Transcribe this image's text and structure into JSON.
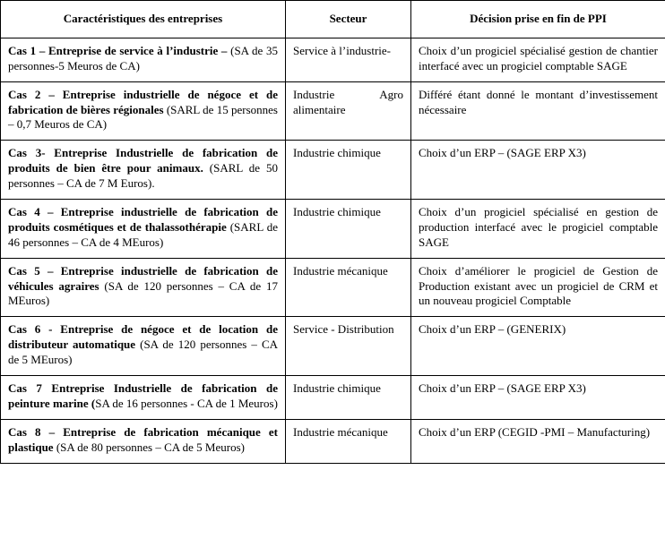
{
  "headers": {
    "col_a": "Caractéristiques des entreprises",
    "col_b": "Secteur",
    "col_c": "Décision prise en fin de PPI"
  },
  "rows": [
    {
      "case_label": "Cas 1 – Entreprise de service à l’industrie –",
      "case_detail": " (SA de 35 personnes-5 Meuros de CA)",
      "sector": "Service  à l’industrie-",
      "decision": "Choix d’un progiciel spécialisé gestion de chantier interfacé avec un progiciel comptable SAGE"
    },
    {
      "case_label": "Cas 2 – Entreprise industrielle de négoce et de fabrication de bières régionales",
      "case_detail": " (SARL de 15 personnes – 0,7 Meuros de CA)",
      "sector_left": "Industrie",
      "sector_right": "Agro",
      "sector_line2": "alimentaire",
      "decision": "Différé étant donné le montant d’investissement nécessaire"
    },
    {
      "case_label": "Cas 3- Entreprise Industrielle de fabrication de produits de bien être pour animaux.",
      "case_detail": " (SARL de 50 personnes – CA de 7 M Euros).",
      "sector": "Industrie chimique",
      "decision": "Choix d’un ERP – (SAGE ERP X3)"
    },
    {
      "case_label": "Cas 4 – Entreprise industrielle de fabrication de produits cosmétiques et de thalassothérapie",
      "case_detail": " (SARL de 46 personnes – CA de 4 MEuros)",
      "sector": "Industrie chimique",
      "decision": "Choix d’un progiciel spécialisé en gestion de production interfacé avec le progiciel comptable SAGE"
    },
    {
      "case_label": "Cas 5 – Entreprise industrielle de fabrication de véhicules agraires",
      "case_detail": " (SA de 120 personnes – CA de 17 MEuros)",
      "sector": "Industrie mécanique",
      "decision": "Choix d’améliorer le progiciel de Gestion de Production existant avec un progiciel de CRM et un nouveau progiciel Comptable"
    },
    {
      "case_label": "Cas 6 - Entreprise de négoce et de location de distributeur automatique",
      "case_detail": " (SA de 120 personnes – CA de 5 MEuros)",
      "sector": "Service - Distribution",
      "decision": "Choix d’un ERP – (GENERIX)"
    },
    {
      "case_label": "Cas 7 Entreprise Industrielle de fabrication de peinture marine (",
      "case_detail": "SA de 16 personnes - CA de 1 Meuros)",
      "sector": "Industrie chimique",
      "decision": "Choix d’un ERP – (SAGE ERP X3)"
    },
    {
      "case_label": "Cas 8 – Entreprise de fabrication mécanique et plastique",
      "case_detail": " (SA de 80 personnes – CA de 5 Meuros)",
      "sector": "Industrie mécanique",
      "decision": "Choix d’un ERP (CEGID -PMI – Manufacturing)"
    }
  ]
}
